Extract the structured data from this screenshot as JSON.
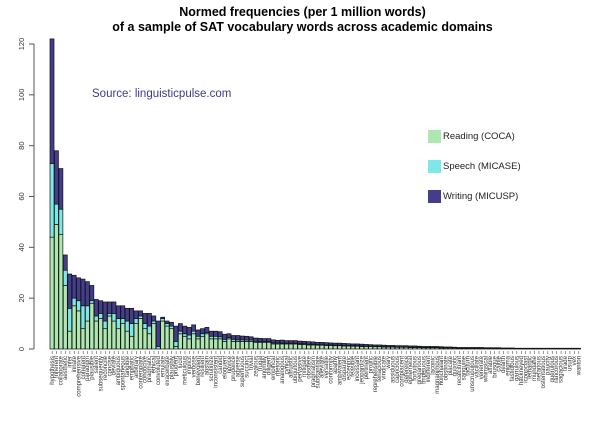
{
  "chart_data": {
    "type": "bar",
    "stacked": true,
    "title": "Normed frequencies (per 1 million words)\nof a sample of SAT vocabulary words across academic domains",
    "title_lines": [
      "Normed frequencies (per 1 million words)",
      "of a sample of SAT vocabulary words across academic domains"
    ],
    "xlabel": "",
    "ylabel": "",
    "ylim": [
      0,
      120
    ],
    "yticks": [
      0,
      20,
      40,
      60,
      80,
      100,
      120
    ],
    "grid": false,
    "legend_position": "right",
    "annotation": "Source: linguisticpulse.com",
    "colors": {
      "reading": "#aee8b0",
      "speech": "#7de8e8",
      "writing": "#433d8c",
      "annotation": "#3d3a8c"
    },
    "series_names": [
      "Reading (COCA)",
      "Speech (MICASE)",
      "Writing (MICUSP)"
    ],
    "categories": [
      "hypothesis",
      "inherent",
      "collaborate",
      "aesthetic",
      "infer",
      "innate",
      "comprehensive",
      "coherent",
      "paradigm",
      "plausible",
      "salient",
      "subsequently",
      "reconcile",
      "concise",
      "deviate",
      "ambiguous",
      "spontaneous",
      "tangible",
      "emphatic",
      "arbitrary",
      "contemplate",
      "conducive",
      "pragmatic",
      "ethical",
      "convoluted",
      "emulate",
      "exacerbate",
      "plausibly",
      "prudent",
      "lucid",
      "meticulous",
      "implicit",
      "verbose",
      "benevolent",
      "resilient",
      "abstain",
      "scrutinize",
      "inconsistent",
      "candid",
      "eloquent",
      "novice",
      "prudence",
      "adverse",
      "superfluous",
      "succinct",
      "trivial",
      "zealous",
      "frugal",
      "anomaly",
      "diligent",
      "empirical",
      "rhetoric",
      "analogous",
      "cynical",
      "altruistic",
      "ubiquitous",
      "pervasive",
      "mitigate",
      "obsolete",
      "pragmatism",
      "substantiate",
      "alleviate",
      "versatile",
      "conformity",
      "apathy",
      "ambivalent",
      "disparate",
      "eccentric",
      "feasible",
      "incessant",
      "jeopardize",
      "pertinent",
      "prolific",
      "reprehensible",
      "tenacious",
      "vindicate",
      "wary",
      "assiduous",
      "capricious",
      "complacent",
      "deference",
      "ephemeral",
      "fortuitous",
      "gregarious",
      "impetuous",
      "indifferent",
      "laconic",
      "magnanimous",
      "nonchalant",
      "obstinate",
      "placate",
      "quixotic",
      "recalcitrant",
      "sanguine",
      "taciturn",
      "unscrupulous",
      "vacillate",
      "venerate",
      "whimsical",
      "affable",
      "brusque",
      "cajole",
      "dearth",
      "enigma",
      "fastidious",
      "garrulous",
      "hackneyed",
      "iconoclast",
      "lethargic",
      "mundane",
      "nefarious",
      "ostentatious",
      "paucity",
      "querulous",
      "rancorous",
      "sagacious",
      "tirade",
      "usurp",
      "vex",
      "wanton"
    ],
    "series": [
      {
        "name": "Reading (COCA)",
        "values": [
          44,
          49,
          45,
          25,
          7,
          17,
          15,
          8,
          11,
          18,
          11,
          12,
          8,
          13,
          11,
          8,
          10,
          7,
          5,
          10,
          12,
          8,
          6,
          10,
          0,
          11,
          9,
          8,
          1,
          6,
          5,
          4,
          6,
          4,
          5,
          6,
          4,
          4,
          4,
          3,
          4,
          3,
          3,
          3,
          3,
          3,
          2.5,
          2.5,
          2.5,
          2.5,
          2,
          2,
          2,
          2,
          2,
          2,
          1.8,
          1.8,
          1.6,
          1.6,
          1.5,
          1.5,
          1.4,
          1.4,
          1.3,
          1.3,
          1.2,
          1.2,
          1.1,
          1.1,
          1,
          1,
          1,
          0.9,
          0.9,
          0.8,
          0.8,
          0.8,
          0.7,
          0.7,
          0.7,
          0.6,
          0.6,
          0.6,
          0.5,
          0.5,
          0.5,
          0.5,
          0.4,
          0.4,
          0.4,
          0.4,
          0.3,
          0.3,
          0.3,
          0.3,
          0.3,
          0.3,
          0.2,
          0.2,
          0.2,
          0.2,
          0.2,
          0.2,
          0.2,
          0.1,
          0.1,
          0.1,
          0.1,
          0.1,
          0.1,
          0.1,
          0.1,
          0.1,
          0.1,
          0.1,
          0.1,
          0.1,
          0.1,
          0.1
        ]
      },
      {
        "name": "Speech (MICASE)",
        "values": [
          29,
          8,
          10,
          6,
          9,
          3,
          4,
          9,
          6,
          1,
          2,
          2,
          3,
          1,
          3,
          4,
          2,
          4,
          5,
          2,
          1,
          2,
          3,
          1,
          1,
          1,
          1,
          1,
          2,
          1,
          1,
          1.5,
          1,
          1,
          1,
          0.5,
          1,
          1,
          0.8,
          0.8,
          0.5,
          0.8,
          0.6,
          0.6,
          0.5,
          0.5,
          0.5,
          0.4,
          0.4,
          0.4,
          0.4,
          0.4,
          0.3,
          0.3,
          0.3,
          0.3,
          0.3,
          0.3,
          0.3,
          0.3,
          0.3,
          0.2,
          0.2,
          0.2,
          0.2,
          0.2,
          0.2,
          0.2,
          0.2,
          0.2,
          0.2,
          0.1,
          0.1,
          0.1,
          0.1,
          0.1,
          0.1,
          0.1,
          0.1,
          0.1,
          0.1,
          0.1,
          0.1,
          0.1,
          0.1,
          0.1,
          0.1,
          0.1,
          0.1,
          0,
          0,
          0,
          0,
          0,
          0,
          0,
          0,
          0,
          0,
          0,
          0,
          0,
          0,
          0,
          0,
          0,
          0,
          0,
          0,
          0,
          0,
          0,
          0,
          0,
          0,
          0,
          0,
          0,
          0,
          0
        ]
      },
      {
        "name": "Writing (MICUSP)",
        "values": [
          49,
          21,
          16,
          6,
          13.5,
          9,
          9,
          10.5,
          9.5,
          6,
          6.5,
          5,
          7.5,
          4.5,
          4.5,
          5,
          5,
          5,
          6,
          3,
          2,
          4,
          5,
          2,
          10,
          0.5,
          1,
          1.5,
          6,
          3,
          3,
          3,
          2.5,
          2.5,
          2,
          2,
          2,
          2,
          2,
          2,
          1.5,
          1.5,
          1.7,
          1.5,
          1.5,
          1.3,
          1.3,
          1.3,
          1.2,
          1.2,
          1.2,
          1,
          1.2,
          1,
          1,
          1,
          1,
          0.9,
          1,
          0.9,
          0.8,
          0.9,
          0.9,
          0.8,
          0.8,
          0.8,
          0.8,
          0.7,
          0.7,
          0.7,
          0.7,
          0.7,
          0.6,
          0.6,
          0.6,
          0.6,
          0.5,
          0.5,
          0.5,
          0.5,
          0.5,
          0.5,
          0.5,
          0.4,
          0.4,
          0.4,
          0.4,
          0.4,
          0.4,
          0.4,
          0.4,
          0.3,
          0.3,
          0.3,
          0.3,
          0.3,
          0.3,
          0.3,
          0.3,
          0.3,
          0.3,
          0.3,
          0.2,
          0.2,
          0.2,
          0.2,
          0.2,
          0.2,
          0.2,
          0.2,
          0.2,
          0.2,
          0.2,
          0.2,
          0.2,
          0.2,
          0.2,
          0.2,
          0.2,
          0.2
        ]
      }
    ]
  },
  "legend": {
    "items": [
      {
        "label": "Reading (COCA)",
        "color": "#aee8b0"
      },
      {
        "label": "Speech (MICASE)",
        "color": "#7de8e8"
      },
      {
        "label": "Writing (MICUSP)",
        "color": "#433d8c"
      }
    ]
  },
  "source_label": "Source: linguisticpulse.com"
}
